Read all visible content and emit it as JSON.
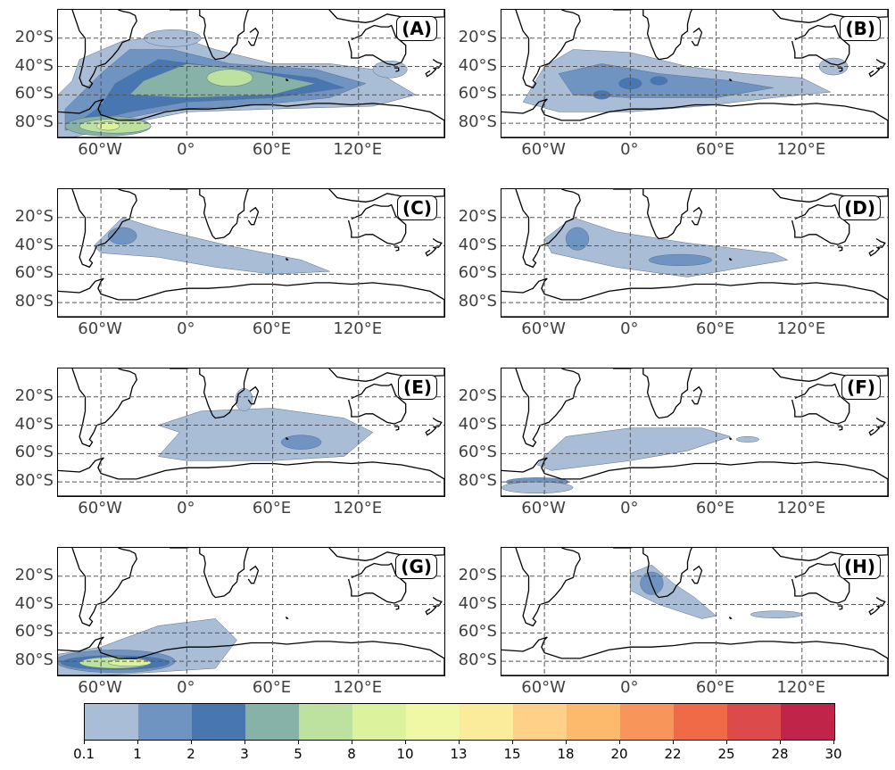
{
  "panels": [
    {
      "label": "(A)"
    },
    {
      "label": "(B)"
    },
    {
      "label": "(C)"
    },
    {
      "label": "(D)"
    },
    {
      "label": "(E)"
    },
    {
      "label": "(F)"
    },
    {
      "label": "(G)"
    },
    {
      "label": "(H)"
    }
  ],
  "axes": {
    "lon_range": [
      -90,
      180
    ],
    "lat_range": [
      -90,
      0
    ],
    "y_ticks": [
      "20°S",
      "40°S",
      "60°S",
      "80°S"
    ],
    "x_ticks": [
      "60°W",
      "0°",
      "60°E",
      "120°E"
    ],
    "gridlines": "dashed"
  },
  "colorbar": {
    "levels": [
      "0.1",
      "1",
      "2",
      "3",
      "5",
      "8",
      "10",
      "13",
      "15",
      "18",
      "20",
      "22",
      "25",
      "28",
      "30"
    ],
    "colors": [
      "#aabdd6",
      "#7094c2",
      "#4876b1",
      "#86b2a7",
      "#bde2a0",
      "#dcf29d",
      "#f0f7a5",
      "#fbec9c",
      "#fed088",
      "#fdb96c",
      "#f7955a",
      "#f06a47",
      "#dd4a4c",
      "#c02449"
    ]
  }
}
